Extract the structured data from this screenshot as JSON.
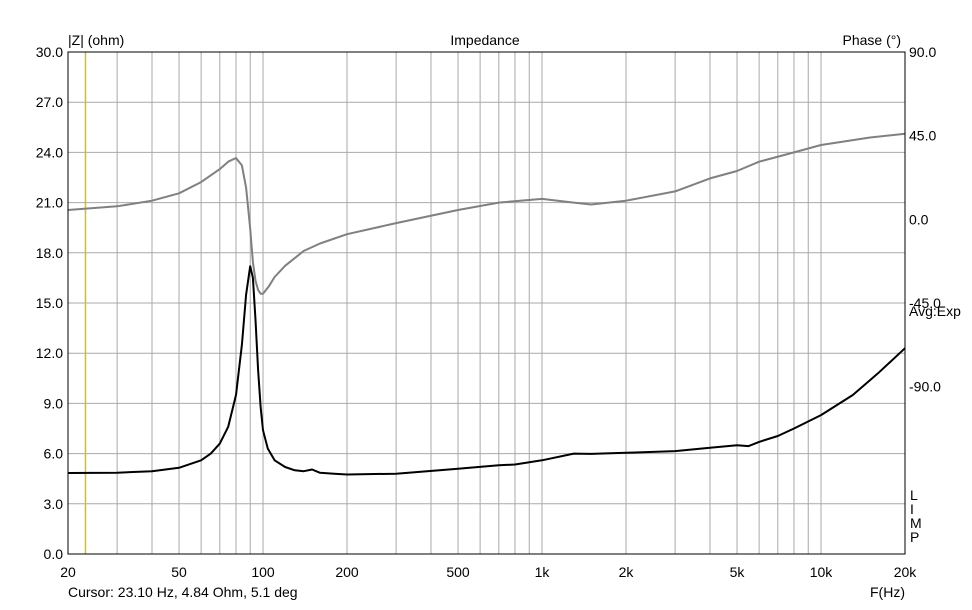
{
  "chart_data": {
    "type": "line",
    "title": "Impedance",
    "xlabel": "F(Hz)",
    "ylabel": "|Z| (ohm)",
    "y2label": "Phase (°)",
    "xscale": "log",
    "xlim": [
      20,
      20000
    ],
    "ylim": [
      0,
      30
    ],
    "y2lim": [
      -180,
      90
    ],
    "grid": true,
    "x_ticks": [
      {
        "value": 20,
        "label": "20"
      },
      {
        "value": 50,
        "label": "50"
      },
      {
        "value": 100,
        "label": "100"
      },
      {
        "value": 200,
        "label": "200"
      },
      {
        "value": 500,
        "label": "500"
      },
      {
        "value": 1000,
        "label": "1k"
      },
      {
        "value": 2000,
        "label": "2k"
      },
      {
        "value": 5000,
        "label": "5k"
      },
      {
        "value": 10000,
        "label": "10k"
      },
      {
        "value": 20000,
        "label": "20k"
      }
    ],
    "y_ticks": [
      {
        "value": 0,
        "label": "0.0"
      },
      {
        "value": 3,
        "label": "3.0"
      },
      {
        "value": 6,
        "label": "6.0"
      },
      {
        "value": 9,
        "label": "9.0"
      },
      {
        "value": 12,
        "label": "12.0"
      },
      {
        "value": 15,
        "label": "15.0"
      },
      {
        "value": 18,
        "label": "18.0"
      },
      {
        "value": 21,
        "label": "21.0"
      },
      {
        "value": 24,
        "label": "24.0"
      },
      {
        "value": 27,
        "label": "27.0"
      },
      {
        "value": 30,
        "label": "30.0"
      }
    ],
    "y2_ticks": [
      {
        "value": 90,
        "label": "90.0"
      },
      {
        "value": 45,
        "label": "45.0"
      },
      {
        "value": 0,
        "label": "0.0"
      },
      {
        "value": -45,
        "label": "-45.0"
      },
      {
        "value": -90,
        "label": "-90.0"
      }
    ],
    "right_annotation": "Avg:Exp",
    "limp_letters": [
      "L",
      "I",
      "M",
      "P"
    ],
    "cursor_marker": {
      "x": 23.1,
      "color": "#d4c400"
    },
    "cursor_readout": "Cursor: 23.10 Hz, 4.84 Ohm, 5.1 deg",
    "series": [
      {
        "axis": "left",
        "color": "#000000",
        "x": [
          20,
          30,
          40,
          50,
          60,
          65,
          70,
          75,
          80,
          84,
          87,
          90,
          92,
          94,
          96,
          98,
          100,
          104,
          110,
          120,
          130,
          140,
          150,
          160,
          180,
          200,
          300,
          500,
          700,
          800,
          1000,
          1300,
          1500,
          2000,
          3000,
          4000,
          5000,
          5500,
          6000,
          7000,
          8000,
          10000,
          13000,
          16000,
          20000
        ],
        "y": [
          4.84,
          4.86,
          4.95,
          5.15,
          5.6,
          6.0,
          6.6,
          7.6,
          9.5,
          12.5,
          15.5,
          17.2,
          16.5,
          14.0,
          11.0,
          8.8,
          7.4,
          6.3,
          5.6,
          5.2,
          5.0,
          4.95,
          5.05,
          4.85,
          4.8,
          4.75,
          4.8,
          5.1,
          5.3,
          5.35,
          5.6,
          6.0,
          5.98,
          6.05,
          6.15,
          6.35,
          6.5,
          6.45,
          6.7,
          7.05,
          7.5,
          8.3,
          9.5,
          10.8,
          12.3
        ]
      },
      {
        "axis": "right",
        "color": "#808080",
        "x": [
          20,
          30,
          40,
          50,
          60,
          70,
          75,
          80,
          84,
          87,
          90,
          92,
          94,
          96,
          98,
          100,
          105,
          110,
          120,
          140,
          160,
          200,
          300,
          500,
          700,
          1000,
          1300,
          1500,
          2000,
          3000,
          4000,
          5000,
          6000,
          8000,
          10000,
          15000,
          20000
        ],
        "y": [
          5,
          7,
          10,
          14,
          20,
          27,
          31,
          33,
          29,
          17,
          -5,
          -23,
          -33,
          -38,
          -40,
          -40,
          -36,
          -31,
          -25,
          -17,
          -13,
          -8,
          -2,
          5,
          9,
          11,
          9,
          8,
          10,
          15,
          22,
          26,
          31,
          36,
          40,
          44,
          46
        ]
      }
    ]
  }
}
